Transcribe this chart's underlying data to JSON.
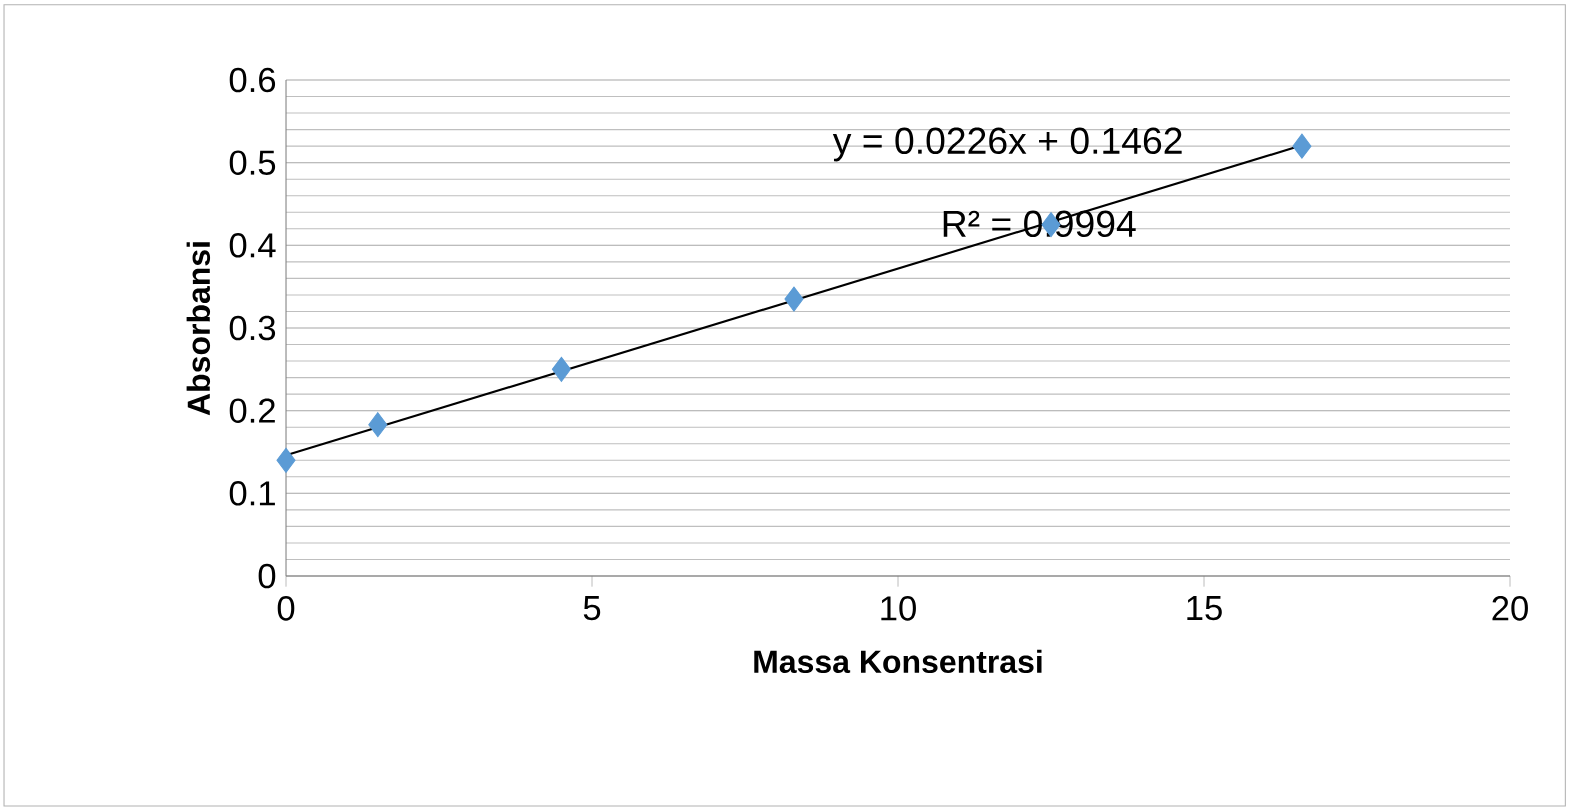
{
  "chart_data": {
    "type": "scatter",
    "xlabel": "Massa Konsentrasi",
    "ylabel": "Absorbansi",
    "xlim": [
      0,
      20
    ],
    "ylim": [
      0,
      0.6
    ],
    "xticks": [
      0,
      5,
      10,
      15,
      20
    ],
    "yticks": [
      0,
      0.1,
      0.2,
      0.3,
      0.4,
      0.5,
      0.6
    ],
    "grid": "y",
    "annotations": [
      "y = 0.0226x + 0.1462",
      "R² = 0.9994"
    ],
    "series": [
      {
        "color": "#5b9bd5",
        "marker": "diamond",
        "x": [
          0,
          1.5,
          4.5,
          8.3,
          12.5,
          16.6
        ],
        "values": [
          0.14,
          0.183,
          0.25,
          0.335,
          0.425,
          0.52
        ]
      },
      {
        "type": "line",
        "color": "#000000",
        "marker": "none",
        "line_style": "solid",
        "x": [
          0,
          16.6
        ],
        "values": [
          0.146,
          0.521
        ]
      }
    ]
  }
}
